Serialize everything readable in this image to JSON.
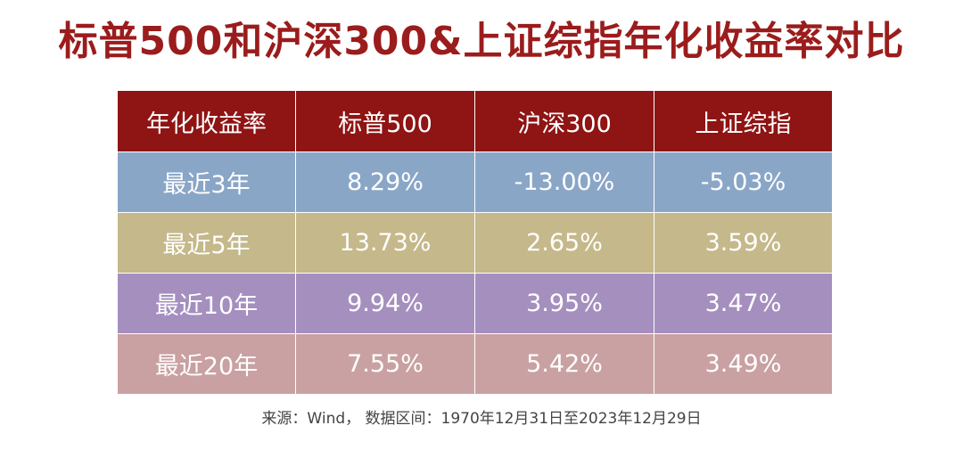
{
  "title": "标普500和沪深300&上证综指年化收益率对比",
  "chart_data": {
    "type": "table",
    "title": "标普500和沪深300&上证综指年化收益率对比",
    "columns": [
      "年化收益率",
      "标普500",
      "沪深300",
      "上证综指"
    ],
    "rows": [
      {
        "label": "最近3年",
        "values": [
          "8.29%",
          "-13.00%",
          "-5.03%"
        ],
        "color": "#8aa6c7"
      },
      {
        "label": "最近5年",
        "values": [
          "13.73%",
          "2.65%",
          "3.59%"
        ],
        "color": "#c5b88a"
      },
      {
        "label": "最近10年",
        "values": [
          "9.94%",
          "3.95%",
          "3.47%"
        ],
        "color": "#a58fbf"
      },
      {
        "label": "最近20年",
        "values": [
          "7.55%",
          "5.42%",
          "3.49%"
        ],
        "color": "#c9a1a2"
      }
    ],
    "header_color": "#8f1414"
  },
  "source": "来源：Wind， 数据区间：1970年12月31日至2023年12月29日"
}
